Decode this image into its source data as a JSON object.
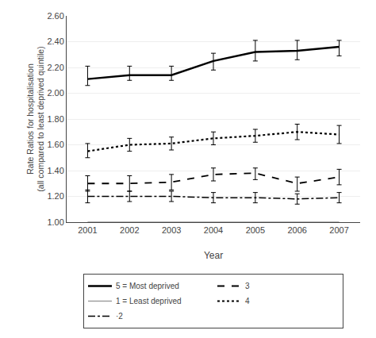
{
  "chart_data": {
    "type": "line",
    "x": [
      2001,
      2002,
      2003,
      2004,
      2005,
      2006,
      2007
    ],
    "xlabel": "Year",
    "ylabel": "Rate Ratios for hospitalisation\n(all compared to least deprived quintile)",
    "xlim": [
      2000.5,
      2007.5
    ],
    "xticks": [
      2001,
      2002,
      2003,
      2004,
      2005,
      2006,
      2007
    ],
    "ylim": [
      1.0,
      2.6
    ],
    "yticks": [
      {
        "value": 1.0,
        "label": "1.00"
      },
      {
        "value": 1.2,
        "label": "1.20"
      },
      {
        "value": 1.4,
        "label": "1.40"
      },
      {
        "value": 1.6,
        "label": "1.60"
      },
      {
        "value": 1.8,
        "label": "1.80"
      },
      {
        "value": 2.0,
        "label": "2.00"
      },
      {
        "value": 2.2,
        "label": "2.20"
      },
      {
        "value": 2.4,
        "label": "2.40"
      },
      {
        "value": 2.6,
        "label": "2.60"
      }
    ],
    "grid": true,
    "legend": "bottom",
    "series": [
      {
        "name": "5 = Most deprived",
        "color": "#000000",
        "line_style": "solid",
        "values": [
          2.11,
          2.14,
          2.14,
          2.25,
          2.32,
          2.33,
          2.36
        ],
        "yerr_lo": [
          0.05,
          0.04,
          0.04,
          0.07,
          0.07,
          0.07,
          0.07
        ],
        "yerr_hi": [
          0.1,
          0.07,
          0.07,
          0.06,
          0.09,
          0.08,
          0.05
        ]
      },
      {
        "name": "3",
        "color": "#000000",
        "line_style": "dashed",
        "values": [
          1.3,
          1.3,
          1.31,
          1.37,
          1.38,
          1.3,
          1.35
        ],
        "yerr_lo": [
          0.06,
          0.06,
          0.06,
          0.05,
          0.05,
          0.06,
          0.06
        ],
        "yerr_hi": [
          0.06,
          0.06,
          0.06,
          0.05,
          0.04,
          0.05,
          0.06
        ]
      },
      {
        "name": "1 = Least deprived",
        "color": "#999999",
        "line_style": "solid",
        "values": [
          1.0,
          1.0,
          1.0,
          1.0,
          1.0,
          1.0,
          1.0
        ]
      },
      {
        "name": "4",
        "color": "#000000",
        "line_style": "dotted",
        "values": [
          1.55,
          1.6,
          1.61,
          1.65,
          1.67,
          1.7,
          1.68
        ],
        "yerr_lo": [
          0.05,
          0.05,
          0.05,
          0.05,
          0.05,
          0.06,
          0.07
        ],
        "yerr_hi": [
          0.06,
          0.05,
          0.05,
          0.05,
          0.05,
          0.06,
          0.07
        ]
      },
      {
        "name": "·2",
        "color": "#000000",
        "line_style": "dashdot",
        "values": [
          1.2,
          1.2,
          1.2,
          1.19,
          1.19,
          1.18,
          1.19
        ],
        "yerr_lo": [
          0.05,
          0.04,
          0.04,
          0.04,
          0.04,
          0.04,
          0.04
        ],
        "yerr_hi": [
          0.05,
          0.04,
          0.04,
          0.04,
          0.04,
          0.04,
          0.04
        ]
      }
    ]
  }
}
